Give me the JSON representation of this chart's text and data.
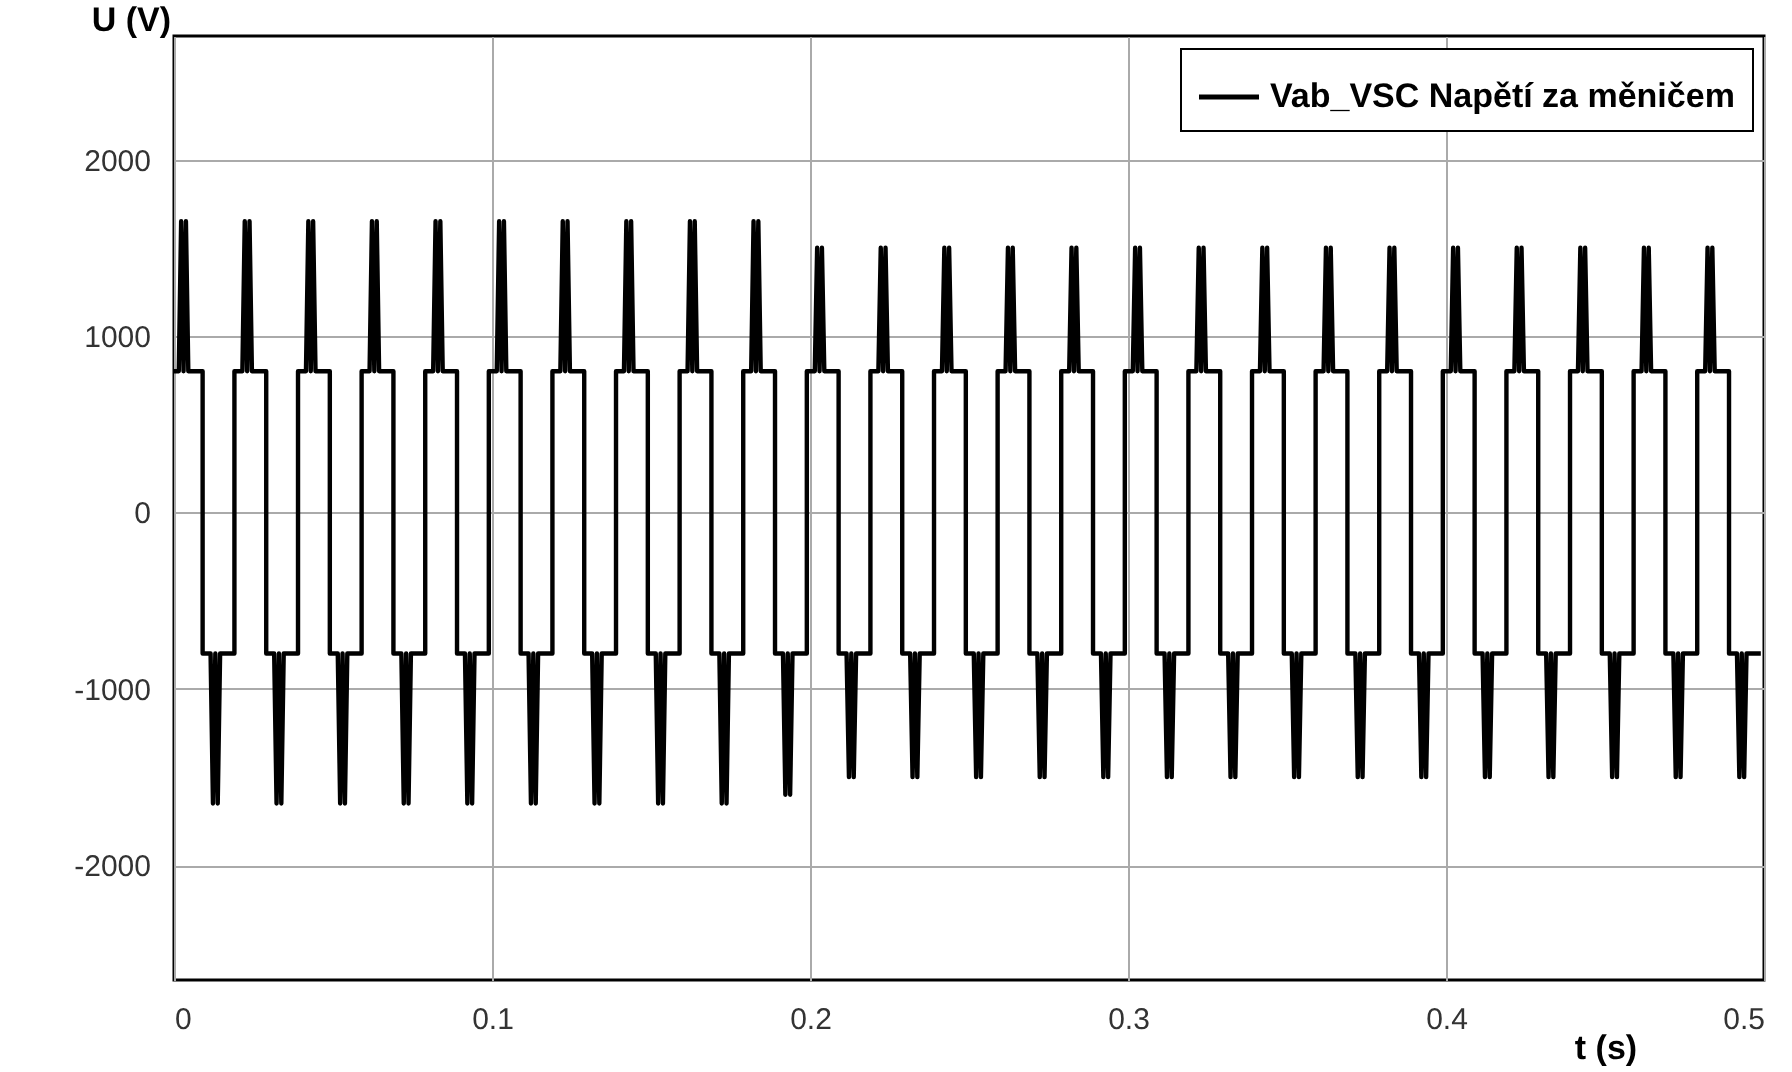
{
  "chart_data": {
    "type": "line",
    "xlabel": "t (s)",
    "ylabel": "U (V)",
    "xlim": [
      0,
      0.5
    ],
    "xticks": [
      0,
      0.1,
      0.2,
      0.3,
      0.4,
      0.5
    ],
    "ylim": [
      -2650,
      2700
    ],
    "yticks": [
      -2000,
      -1000,
      0,
      1000,
      2000
    ],
    "grid": true,
    "legend": "top right",
    "marker": "none",
    "line_style": "solid",
    "series": [
      {
        "name": "Vab_VSC Napětí za měničem",
        "color": "#000000",
        "x": [
          0,
          0.0015,
          0.00225,
          0.003,
          0.00375,
          0.0045,
          0.009,
          0.009,
          0.0115,
          0.01225,
          0.013,
          0.01375,
          0.0145,
          0.019,
          0.019,
          0.0215,
          0.02225,
          0.023,
          0.02375,
          0.0245,
          0.029,
          0.029,
          0.0315,
          0.03225,
          0.033,
          0.03375,
          0.0345,
          0.039,
          0.039,
          0.0415,
          0.04225,
          0.043,
          0.04375,
          0.0445,
          0.049,
          0.049,
          0.0515,
          0.05225,
          0.053,
          0.05375,
          0.0545,
          0.059,
          0.059,
          0.0615,
          0.06225,
          0.063,
          0.06375,
          0.0645,
          0.069,
          0.069,
          0.0715,
          0.07225,
          0.073,
          0.07375,
          0.0745,
          0.079,
          0.079,
          0.0815,
          0.08225,
          0.083,
          0.08375,
          0.0845,
          0.089,
          0.089,
          0.0915,
          0.09225,
          0.093,
          0.09375,
          0.0945,
          0.099,
          0.099,
          0.1015,
          0.10225,
          0.103,
          0.10375,
          0.1045,
          0.109,
          0.109,
          0.1115,
          0.11225,
          0.113,
          0.11375,
          0.1145,
          0.119,
          0.119,
          0.1215,
          0.12225,
          0.123,
          0.12375,
          0.1245,
          0.129,
          0.129,
          0.1315,
          0.13225,
          0.133,
          0.13375,
          0.1345,
          0.139,
          0.139,
          0.1415,
          0.14225,
          0.143,
          0.14375,
          0.1445,
          0.149,
          0.149,
          0.1515,
          0.15225,
          0.153,
          0.15375,
          0.1545,
          0.159,
          0.159,
          0.1615,
          0.16225,
          0.163,
          0.16375,
          0.1645,
          0.169,
          0.169,
          0.1715,
          0.17225,
          0.173,
          0.17375,
          0.1745,
          0.179,
          0.179,
          0.1815,
          0.18225,
          0.183,
          0.18375,
          0.1845,
          0.189,
          0.189,
          0.1915,
          0.19225,
          0.193,
          0.19375,
          0.1945,
          0.199,
          0.199,
          0.2015,
          0.20225,
          0.203,
          0.20375,
          0.2045,
          0.209,
          0.209,
          0.2115,
          0.21225,
          0.213,
          0.21375,
          0.2145,
          0.219,
          0.219,
          0.2215,
          0.22225,
          0.223,
          0.22375,
          0.2245,
          0.229,
          0.229,
          0.2315,
          0.23225,
          0.233,
          0.23375,
          0.2345,
          0.239,
          0.239,
          0.2415,
          0.24225,
          0.243,
          0.24375,
          0.2445,
          0.249,
          0.249,
          0.2515,
          0.25225,
          0.253,
          0.25375,
          0.2545,
          0.259,
          0.259,
          0.2615,
          0.26225,
          0.263,
          0.26375,
          0.2645,
          0.269,
          0.269,
          0.2715,
          0.27225,
          0.273,
          0.27375,
          0.2745,
          0.279,
          0.279,
          0.2815,
          0.28225,
          0.283,
          0.28375,
          0.2845,
          0.289,
          0.289,
          0.2915,
          0.29225,
          0.293,
          0.29375,
          0.2945,
          0.299,
          0.299,
          0.3015,
          0.30225,
          0.303,
          0.30375,
          0.3045,
          0.309,
          0.309,
          0.3115,
          0.31225,
          0.313,
          0.31375,
          0.3145,
          0.319,
          0.319,
          0.3215,
          0.32225,
          0.323,
          0.32375,
          0.3245,
          0.329,
          0.329,
          0.3315,
          0.33225,
          0.333,
          0.33375,
          0.3345,
          0.339,
          0.339,
          0.3415,
          0.34225,
          0.343,
          0.34375,
          0.3445,
          0.349,
          0.349,
          0.3515,
          0.35225,
          0.353,
          0.35375,
          0.3545,
          0.359,
          0.359,
          0.3615,
          0.36225,
          0.363,
          0.36375,
          0.3645,
          0.369,
          0.369,
          0.3715,
          0.37225,
          0.373,
          0.37375,
          0.3745,
          0.379,
          0.379,
          0.3815,
          0.38225,
          0.383,
          0.38375,
          0.3845,
          0.389,
          0.389,
          0.3915,
          0.39225,
          0.393,
          0.39375,
          0.3945,
          0.399,
          0.399,
          0.4015,
          0.40225,
          0.403,
          0.40375,
          0.4045,
          0.409,
          0.409,
          0.4115,
          0.41225,
          0.413,
          0.41375,
          0.4145,
          0.419,
          0.419,
          0.4215,
          0.42225,
          0.423,
          0.42375,
          0.4245,
          0.429,
          0.429,
          0.4315,
          0.43225,
          0.433,
          0.43375,
          0.4345,
          0.439,
          0.439,
          0.4415,
          0.44225,
          0.443,
          0.44375,
          0.4445,
          0.449,
          0.449,
          0.4515,
          0.45225,
          0.453,
          0.45375,
          0.4545,
          0.459,
          0.459,
          0.4615,
          0.46225,
          0.463,
          0.46375,
          0.4645,
          0.469,
          0.469,
          0.4715,
          0.47225,
          0.473,
          0.47375,
          0.4745,
          0.479,
          0.479,
          0.4815,
          0.48225,
          0.483,
          0.48375,
          0.4845,
          0.489,
          0.489,
          0.4915,
          0.49225,
          0.493,
          0.49375,
          0.4945,
          0.499
        ],
        "values": [
          800,
          800,
          1650,
          800,
          1650,
          800,
          800,
          -800,
          -800,
          -1650,
          -800,
          -1650,
          -800,
          -800,
          800,
          800,
          1650,
          800,
          1650,
          800,
          800,
          -800,
          -800,
          -1650,
          -800,
          -1650,
          -800,
          -800,
          800,
          800,
          1650,
          800,
          1650,
          800,
          800,
          -800,
          -800,
          -1650,
          -800,
          -1650,
          -800,
          -800,
          800,
          800,
          1650,
          800,
          1650,
          800,
          800,
          -800,
          -800,
          -1650,
          -800,
          -1650,
          -800,
          -800,
          800,
          800,
          1650,
          800,
          1650,
          800,
          800,
          -800,
          -800,
          -1650,
          -800,
          -1650,
          -800,
          -800,
          800,
          800,
          1650,
          800,
          1650,
          800,
          800,
          -800,
          -800,
          -1650,
          -800,
          -1650,
          -800,
          -800,
          800,
          800,
          1650,
          800,
          1650,
          800,
          800,
          -800,
          -800,
          -1650,
          -800,
          -1650,
          -800,
          -800,
          800,
          800,
          1650,
          800,
          1650,
          800,
          800,
          -800,
          -800,
          -1650,
          -800,
          -1650,
          -800,
          -800,
          800,
          800,
          1650,
          800,
          1650,
          800,
          800,
          -800,
          -800,
          -1650,
          -800,
          -1650,
          -800,
          -800,
          800,
          800,
          1650,
          800,
          1650,
          800,
          800,
          -800,
          -800,
          -1600,
          -800,
          -1600,
          -800,
          -800,
          800,
          800,
          1500,
          800,
          1500,
          800,
          800,
          -800,
          -800,
          -1500,
          -800,
          -1500,
          -800,
          -800,
          800,
          800,
          1500,
          800,
          1500,
          800,
          800,
          -800,
          -800,
          -1500,
          -800,
          -1500,
          -800,
          -800,
          800,
          800,
          1500,
          800,
          1500,
          800,
          800,
          -800,
          -800,
          -1500,
          -800,
          -1500,
          -800,
          -800,
          800,
          800,
          1500,
          800,
          1500,
          800,
          800,
          -800,
          -800,
          -1500,
          -800,
          -1500,
          -800,
          -800,
          800,
          800,
          1500,
          800,
          1500,
          800,
          800,
          -800,
          -800,
          -1500,
          -800,
          -1500,
          -800,
          -800,
          800,
          800,
          1500,
          800,
          1500,
          800,
          800,
          -800,
          -800,
          -1500,
          -800,
          -1500,
          -800,
          -800,
          800,
          800,
          1500,
          800,
          1500,
          800,
          800,
          -800,
          -800,
          -1500,
          -800,
          -1500,
          -800,
          -800,
          800,
          800,
          1500,
          800,
          1500,
          800,
          800,
          -800,
          -800,
          -1500,
          -800,
          -1500,
          -800,
          -800,
          800,
          800,
          1500,
          800,
          1500,
          800,
          800,
          -800,
          -800,
          -1500,
          -800,
          -1500,
          -800,
          -800,
          800,
          800,
          1500,
          800,
          1500,
          800,
          800,
          -800,
          -800,
          -1500,
          -800,
          -1500,
          -800,
          -800,
          800,
          800,
          1500,
          800,
          1500,
          800,
          800,
          -800,
          -800,
          -1500,
          -800,
          -1500,
          -800,
          -800,
          800,
          800,
          1500,
          800,
          1500,
          800,
          800,
          -800,
          -800,
          -1500,
          -800,
          -1500,
          -800,
          -800,
          800,
          800,
          1500,
          800,
          1500,
          800,
          800,
          -800,
          -800,
          -1500,
          -800,
          -1500,
          -800,
          -800,
          800,
          800,
          1500,
          800,
          1500,
          800,
          800,
          -800,
          -800,
          -1500,
          -800,
          -1500,
          -800,
          -800,
          800,
          800,
          1500,
          800,
          1500,
          800,
          800,
          -800,
          -800,
          -1500,
          -800,
          -1500,
          -800,
          -800
        ]
      }
    ]
  }
}
